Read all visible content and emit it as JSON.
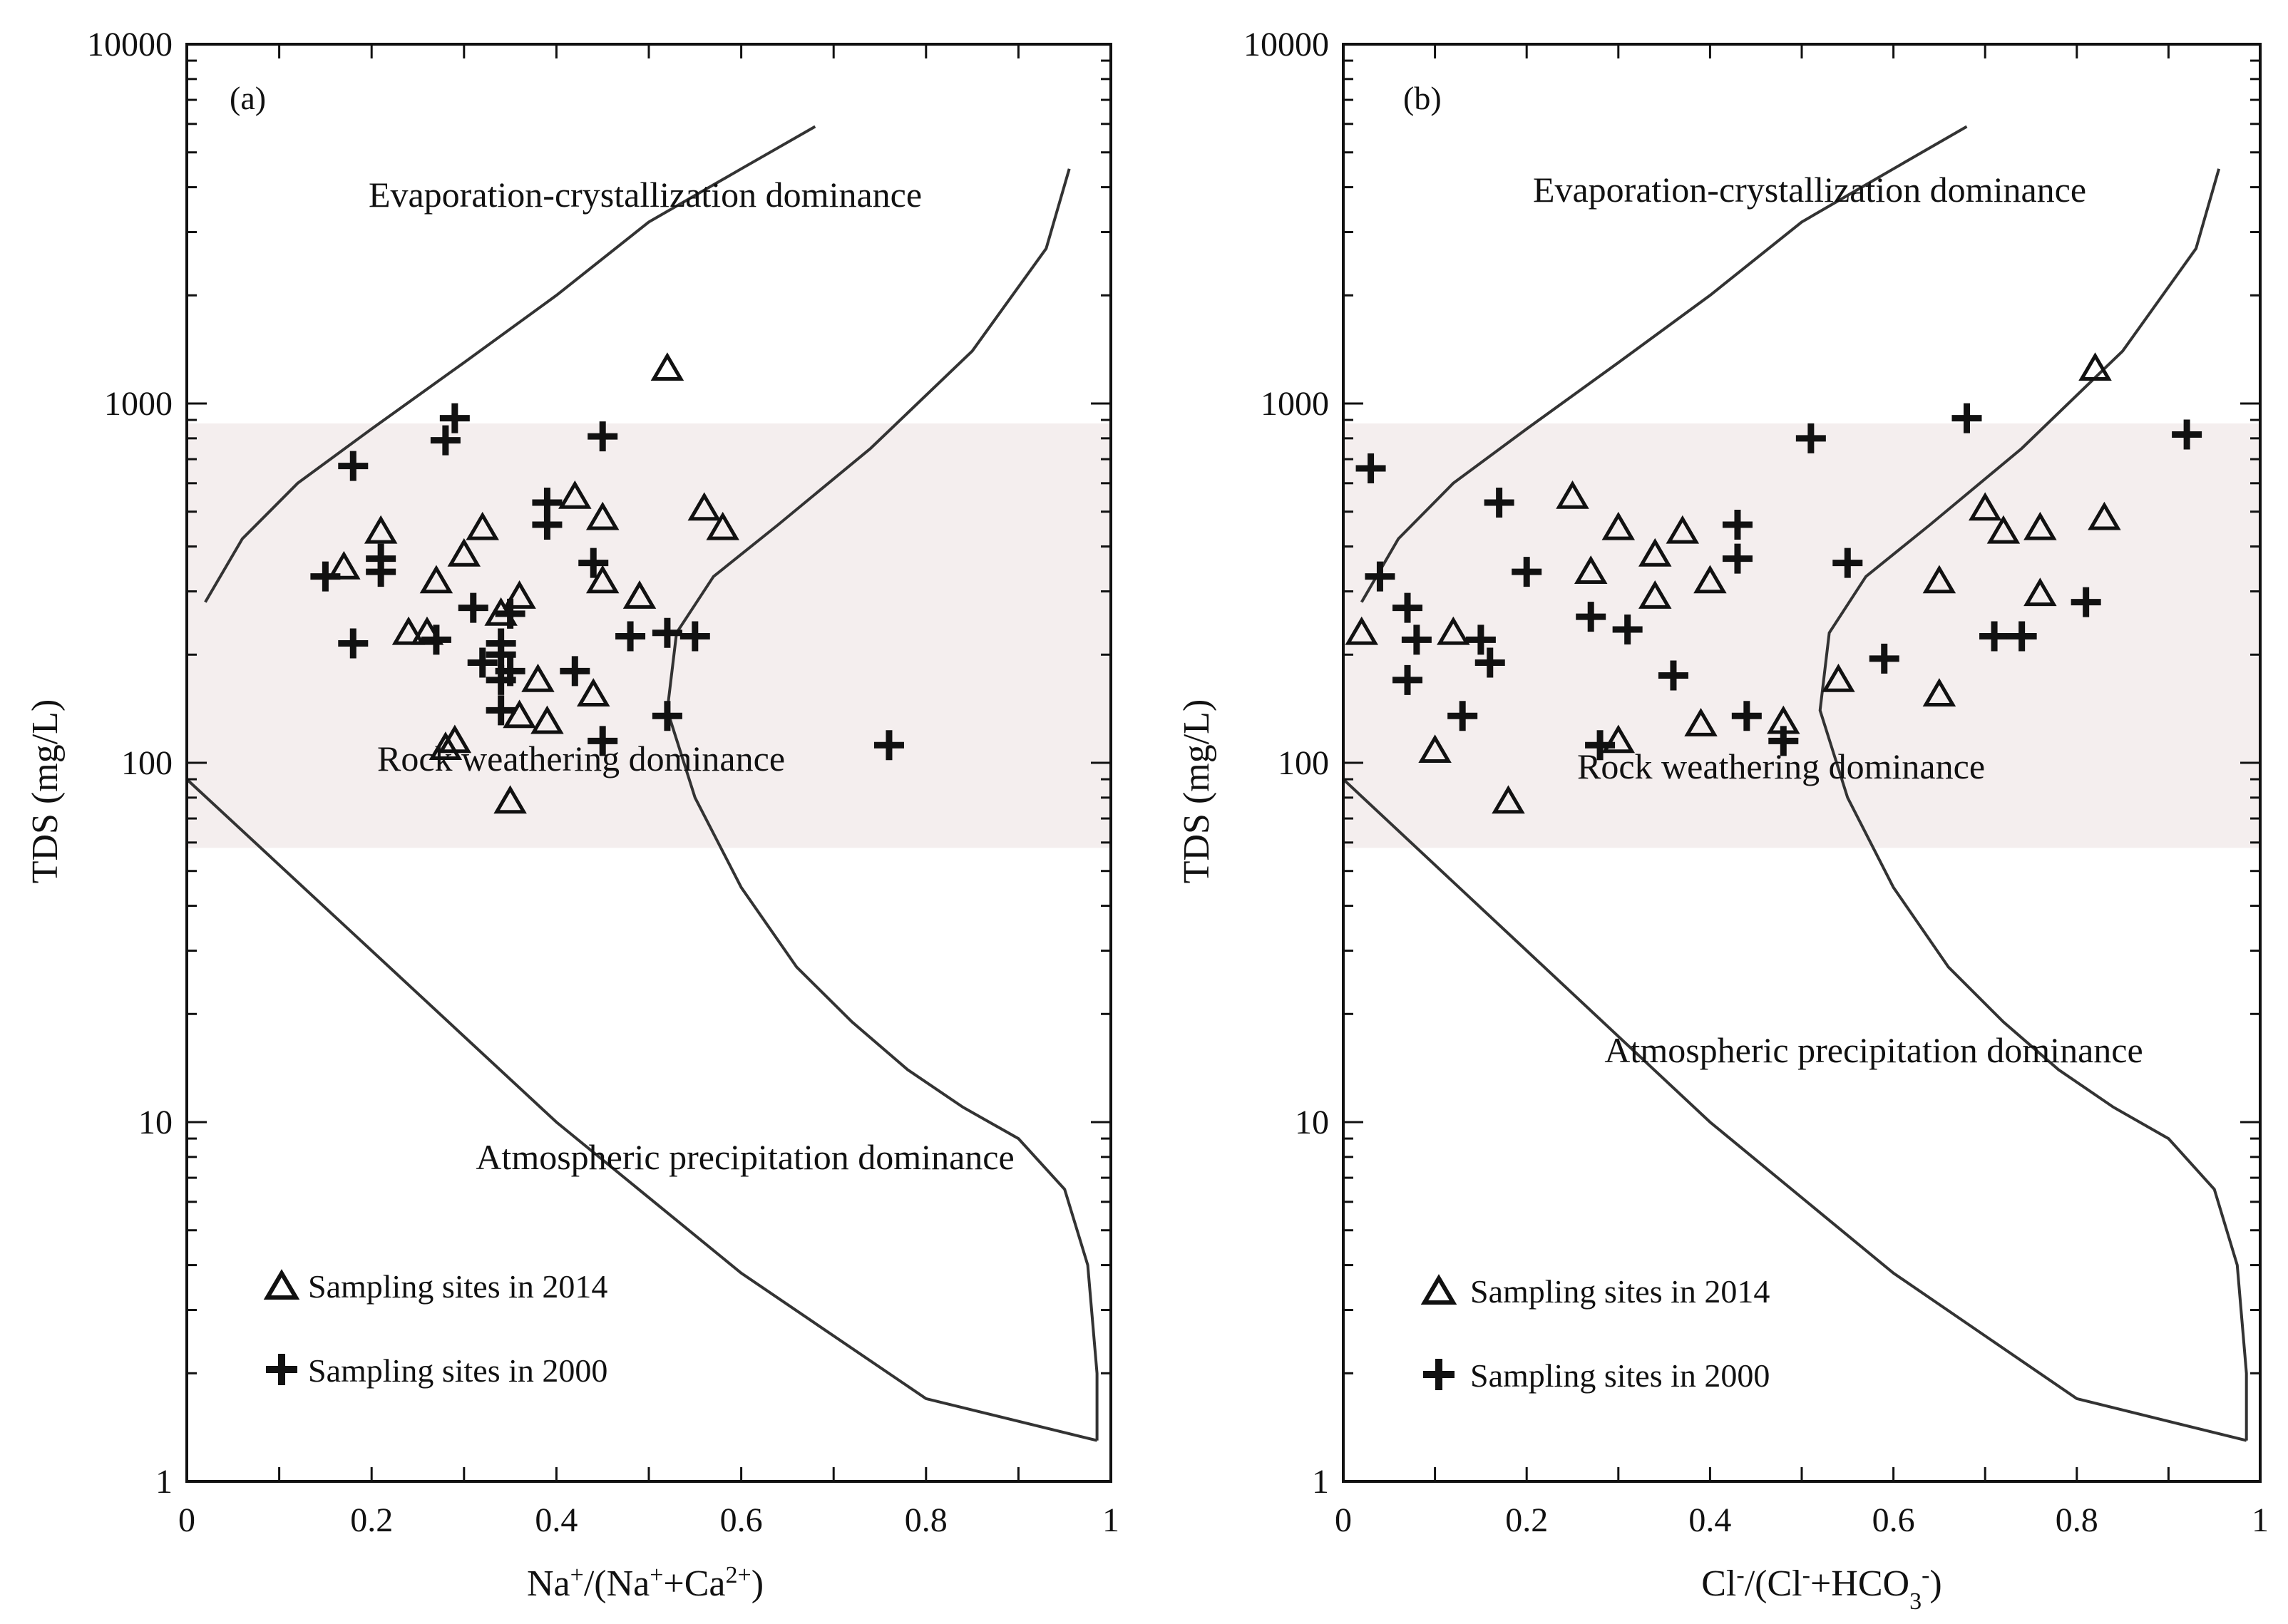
{
  "chart_data": [
    {
      "panel": "(a)",
      "type": "scatter",
      "xlabel_parts": [
        "Na",
        "+",
        "/(Na",
        "+",
        "+Ca",
        "2+",
        ")"
      ],
      "ylabel": "TDS (mg/L)",
      "xlim": [
        0,
        1
      ],
      "ylim": [
        1,
        10000
      ],
      "yscale": "log",
      "x_ticks": [
        "0",
        "0.2",
        "0.4",
        "0.6",
        "0.8",
        "1"
      ],
      "y_ticks": [
        "1",
        "10",
        "100",
        "1000",
        "10000"
      ],
      "shaded_band": [
        58,
        880
      ],
      "regions": {
        "evaporation": "Evaporation-crystallization dominance",
        "rock": "Rock weathering dominance",
        "atmospheric": "Atmospheric precipitation dominance"
      },
      "boundary_lines": {
        "upper": [
          [
            0.02,
            280
          ],
          [
            0.06,
            420
          ],
          [
            0.12,
            600
          ],
          [
            0.2,
            850
          ],
          [
            0.3,
            1300
          ],
          [
            0.4,
            2000
          ],
          [
            0.5,
            3200
          ],
          [
            0.6,
            4500
          ],
          [
            0.68,
            5900
          ]
        ],
        "lower": [
          [
            0,
            90
          ],
          [
            0.2,
            30
          ],
          [
            0.4,
            10
          ],
          [
            0.6,
            3.8
          ],
          [
            0.8,
            1.7
          ],
          [
            0.985,
            1.3
          ]
        ],
        "right": [
          [
            0.985,
            1.3
          ],
          [
            0.985,
            2
          ],
          [
            0.975,
            4
          ],
          [
            0.95,
            6.5
          ],
          [
            0.9,
            9
          ],
          [
            0.84,
            11
          ],
          [
            0.78,
            14
          ],
          [
            0.72,
            19
          ],
          [
            0.66,
            27
          ],
          [
            0.6,
            45
          ],
          [
            0.55,
            80
          ],
          [
            0.52,
            140
          ],
          [
            0.53,
            230
          ],
          [
            0.57,
            330
          ],
          [
            0.64,
            460
          ],
          [
            0.74,
            750
          ],
          [
            0.85,
            1400
          ],
          [
            0.93,
            2700
          ],
          [
            0.955,
            4500
          ]
        ]
      },
      "series": [
        {
          "name": "Sampling sites in 2014",
          "marker": "triangle",
          "points": [
            [
              0.52,
              1250
            ],
            [
              0.42,
              550
            ],
            [
              0.56,
              510
            ],
            [
              0.45,
              480
            ],
            [
              0.58,
              450
            ],
            [
              0.32,
              450
            ],
            [
              0.21,
              440
            ],
            [
              0.3,
              380
            ],
            [
              0.17,
              350
            ],
            [
              0.27,
              320
            ],
            [
              0.45,
              320
            ],
            [
              0.49,
              290
            ],
            [
              0.36,
              290
            ],
            [
              0.34,
              260
            ],
            [
              0.24,
              230
            ],
            [
              0.26,
              230
            ],
            [
              0.38,
              170
            ],
            [
              0.44,
              155
            ],
            [
              0.36,
              135
            ],
            [
              0.39,
              130
            ],
            [
              0.29,
              115
            ],
            [
              0.28,
              110
            ],
            [
              0.35,
              78
            ]
          ]
        },
        {
          "name": "Sampling sites in 2000",
          "marker": "cross",
          "points": [
            [
              0.29,
              910
            ],
            [
              0.45,
              810
            ],
            [
              0.28,
              790
            ],
            [
              0.18,
              670
            ],
            [
              0.39,
              530
            ],
            [
              0.39,
              460
            ],
            [
              0.21,
              370
            ],
            [
              0.21,
              340
            ],
            [
              0.44,
              360
            ],
            [
              0.15,
              330
            ],
            [
              0.31,
              270
            ],
            [
              0.35,
              260
            ],
            [
              0.52,
              230
            ],
            [
              0.48,
              225
            ],
            [
              0.55,
              225
            ],
            [
              0.27,
              220
            ],
            [
              0.18,
              215
            ],
            [
              0.34,
              215
            ],
            [
              0.34,
              200
            ],
            [
              0.32,
              190
            ],
            [
              0.35,
              180
            ],
            [
              0.42,
              180
            ],
            [
              0.34,
              170
            ],
            [
              0.34,
              140
            ],
            [
              0.52,
              135
            ],
            [
              0.45,
              115
            ],
            [
              0.76,
              112
            ]
          ]
        }
      ]
    },
    {
      "panel": "(b)",
      "type": "scatter",
      "xlabel_parts": [
        "Cl",
        "-",
        "/(Cl",
        "-",
        "+HCO",
        "3",
        "-",
        ")"
      ],
      "ylabel": "TDS (mg/L)",
      "xlim": [
        0,
        1
      ],
      "ylim": [
        1,
        10000
      ],
      "yscale": "log",
      "x_ticks": [
        "0",
        "0.2",
        "0.4",
        "0.6",
        "0.8",
        "1"
      ],
      "y_ticks": [
        "1",
        "10",
        "100",
        "1000",
        "10000"
      ],
      "shaded_band": [
        58,
        880
      ],
      "regions": {
        "evaporation": "Evaporation-crystallization dominance",
        "rock": "Rock weathering dominance",
        "atmospheric": "Atmospheric precipitation dominance"
      },
      "boundary_lines": {
        "upper": [
          [
            0.02,
            280
          ],
          [
            0.06,
            420
          ],
          [
            0.12,
            600
          ],
          [
            0.2,
            850
          ],
          [
            0.3,
            1300
          ],
          [
            0.4,
            2000
          ],
          [
            0.5,
            3200
          ],
          [
            0.6,
            4500
          ],
          [
            0.68,
            5900
          ]
        ],
        "lower": [
          [
            0,
            90
          ],
          [
            0.2,
            30
          ],
          [
            0.4,
            10
          ],
          [
            0.6,
            3.8
          ],
          [
            0.8,
            1.7
          ],
          [
            0.985,
            1.3
          ]
        ],
        "right": [
          [
            0.985,
            1.3
          ],
          [
            0.985,
            2
          ],
          [
            0.975,
            4
          ],
          [
            0.95,
            6.5
          ],
          [
            0.9,
            9
          ],
          [
            0.84,
            11
          ],
          [
            0.78,
            14
          ],
          [
            0.72,
            19
          ],
          [
            0.66,
            27
          ],
          [
            0.6,
            45
          ],
          [
            0.55,
            80
          ],
          [
            0.52,
            140
          ],
          [
            0.53,
            230
          ],
          [
            0.57,
            330
          ],
          [
            0.64,
            460
          ],
          [
            0.74,
            750
          ],
          [
            0.85,
            1400
          ],
          [
            0.93,
            2700
          ],
          [
            0.955,
            4500
          ]
        ]
      },
      "series": [
        {
          "name": "Sampling sites in 2014",
          "marker": "triangle",
          "points": [
            [
              0.82,
              1250
            ],
            [
              0.25,
              550
            ],
            [
              0.7,
              510
            ],
            [
              0.83,
              480
            ],
            [
              0.3,
              450
            ],
            [
              0.76,
              450
            ],
            [
              0.72,
              440
            ],
            [
              0.37,
              440
            ],
            [
              0.34,
              380
            ],
            [
              0.27,
              340
            ],
            [
              0.4,
              320
            ],
            [
              0.65,
              320
            ],
            [
              0.76,
              295
            ],
            [
              0.34,
              290
            ],
            [
              0.02,
              230
            ],
            [
              0.12,
              230
            ],
            [
              0.54,
              170
            ],
            [
              0.65,
              155
            ],
            [
              0.48,
              130
            ],
            [
              0.39,
              128
            ],
            [
              0.3,
              115
            ],
            [
              0.1,
              108
            ],
            [
              0.18,
              78
            ]
          ]
        },
        {
          "name": "Sampling sites in 2000",
          "marker": "cross",
          "points": [
            [
              0.68,
              910
            ],
            [
              0.92,
              820
            ],
            [
              0.51,
              800
            ],
            [
              0.03,
              660
            ],
            [
              0.17,
              530
            ],
            [
              0.43,
              460
            ],
            [
              0.43,
              370
            ],
            [
              0.55,
              360
            ],
            [
              0.2,
              340
            ],
            [
              0.04,
              330
            ],
            [
              0.81,
              280
            ],
            [
              0.07,
              270
            ],
            [
              0.27,
              255
            ],
            [
              0.31,
              235
            ],
            [
              0.71,
              225
            ],
            [
              0.74,
              225
            ],
            [
              0.08,
              220
            ],
            [
              0.15,
              220
            ],
            [
              0.16,
              190
            ],
            [
              0.59,
              195
            ],
            [
              0.36,
              175
            ],
            [
              0.07,
              170
            ],
            [
              0.13,
              135
            ],
            [
              0.44,
              135
            ],
            [
              0.48,
              115
            ],
            [
              0.28,
              112
            ]
          ]
        }
      ]
    }
  ],
  "legend": {
    "label_2014": "Sampling sites in 2014",
    "label_2000": "Sampling sites in 2000"
  }
}
